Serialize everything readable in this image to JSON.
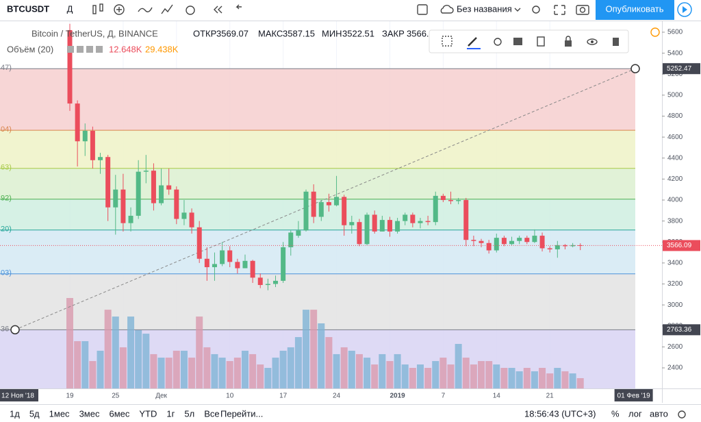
{
  "toolbar": {
    "symbol": "BTCUSDT",
    "interval": "Д",
    "layout_name": "Без названия",
    "publish": "Опубликовать"
  },
  "legend": {
    "title": "Bitcoin / TetherUS, Д, BINANCE",
    "open_label": "ОТКР",
    "high_label": "МАКС",
    "low_label": "МИН",
    "close_label": "ЗАКР",
    "close_shown": "3566.",
    "volume_title": "Объём (20)",
    "volume_value": "12.648K",
    "volume_ma": "29.438K"
  },
  "chart_data": {
    "type": "candlestick",
    "up_color": "#53b987",
    "down_color": "#eb4d5c",
    "candles": {
      "open": [
        5620,
        4920,
        4560,
        4660,
        4380,
        4410,
        3930,
        4100,
        3780,
        3850,
        4270,
        4280,
        3970,
        4140,
        4100,
        3820,
        3880,
        3740,
        3440,
        3360,
        3390,
        3520,
        3410,
        3350,
        3420,
        3260,
        3190,
        3200,
        3230,
        3550,
        3660,
        3710,
        4080,
        3840,
        3980,
        3950,
        4030,
        3760,
        3790,
        3580,
        3860,
        3700,
        3810,
        3700,
        3800,
        3860,
        3780,
        3800,
        3790,
        4040,
        4000,
        3990,
        4000,
        3620,
        3610,
        3590,
        3520,
        3640,
        3580,
        3610,
        3640,
        3600,
        3660,
        3540,
        3530,
        3570,
        3560,
        3569.07
      ],
      "high": [
        5680,
        4950,
        4730,
        4700,
        4450,
        4430,
        4240,
        4250,
        3930,
        4380,
        4430,
        4350,
        4300,
        4300,
        4130,
        4000,
        3920,
        3800,
        3550,
        3500,
        3600,
        3560,
        3440,
        3480,
        3430,
        3300,
        3250,
        3280,
        3600,
        3710,
        3800,
        4100,
        4150,
        4000,
        4060,
        4230,
        4050,
        3850,
        3820,
        3880,
        3900,
        3850,
        3840,
        3830,
        3880,
        3880,
        3830,
        3850,
        4080,
        4060,
        4080,
        4020,
        4020,
        3660,
        3630,
        3620,
        3680,
        3660,
        3650,
        3660,
        3660,
        3720,
        3690,
        3560,
        3610,
        3580,
        3590,
        3587.15
      ],
      "low": [
        4850,
        4320,
        4420,
        4300,
        4250,
        3800,
        3670,
        3700,
        3700,
        3820,
        4160,
        3900,
        3950,
        4050,
        3770,
        3760,
        3680,
        3400,
        3230,
        3230,
        3370,
        3360,
        3300,
        3350,
        3210,
        3160,
        3140,
        3170,
        3210,
        3470,
        3640,
        3700,
        3780,
        3800,
        3890,
        3940,
        3660,
        3680,
        3560,
        3570,
        3680,
        3700,
        3650,
        3680,
        3760,
        3740,
        3730,
        3760,
        3760,
        3980,
        3960,
        3960,
        3560,
        3560,
        3550,
        3490,
        3500,
        3560,
        3570,
        3580,
        3580,
        3590,
        3510,
        3500,
        3450,
        3530,
        3550,
        3522.51
      ],
      "close": [
        4920,
        4560,
        4660,
        4380,
        4410,
        3930,
        4100,
        3780,
        3850,
        4270,
        4280,
        3970,
        4140,
        4100,
        3820,
        3880,
        3740,
        3440,
        3360,
        3390,
        3520,
        3410,
        3350,
        3420,
        3260,
        3190,
        3200,
        3230,
        3550,
        3690,
        3710,
        4080,
        3840,
        3980,
        3950,
        4030,
        3760,
        3790,
        3580,
        3860,
        3700,
        3810,
        3700,
        3800,
        3860,
        3780,
        3800,
        3790,
        4040,
        4000,
        3990,
        4000,
        3620,
        3610,
        3590,
        3520,
        3640,
        3580,
        3610,
        3640,
        3600,
        3660,
        3540,
        3530,
        3570,
        3560,
        3570,
        3566.09
      ]
    },
    "volume": {
      "up_color": "#7fb4d6",
      "down_color": "#d99aae",
      "values": [
        111.3,
        58.2,
        58.2,
        33.7,
        46.4,
        96.9,
        88.5,
        50.6,
        88.5,
        71.7,
        67.4,
        42.2,
        37.9,
        37.9,
        46.4,
        46.4,
        37.9,
        88.5,
        50.6,
        42.2,
        37.9,
        33.7,
        37.9,
        46.4,
        42.2,
        29.5,
        25.3,
        37.9,
        46.4,
        50.6,
        63.2,
        96.9,
        96.9,
        80.1,
        63.2,
        42.2,
        50.6,
        46.4,
        42.2,
        37.9,
        29.5,
        42.2,
        33.7,
        42.2,
        29.5,
        25.3,
        29.5,
        25.3,
        33.7,
        37.9,
        29.5,
        54.8,
        37.9,
        29.5,
        33.7,
        33.7,
        29.5,
        25.3,
        25.3,
        21.1,
        25.3,
        21.1,
        25.3,
        18.5,
        25.3,
        21.1,
        18.5,
        12.648
      ]
    },
    "ylim": [
      2204,
      5711
    ],
    "yticks": [
      2400,
      2600,
      2800,
      3000,
      3200,
      3400,
      3600,
      3800,
      4000,
      4200,
      4400,
      4600,
      4800,
      5000,
      5200,
      5400,
      5600
    ],
    "fib": {
      "levels": [
        {
          "price": 5252.47,
          "label": "47)",
          "color": "#787b86",
          "fill": "#f6cfcf"
        },
        {
          "price": 4665.04,
          "label": "04)",
          "color": "#d8844a",
          "fill": "#eef2c7"
        },
        {
          "price": 4301.63,
          "label": "63)",
          "color": "#a7c947",
          "fill": "#dcf0d0"
        },
        {
          "price": 4007.92,
          "label": "92)",
          "color": "#4caf50",
          "fill": "#cfeee0"
        },
        {
          "price": 3714.2,
          "label": "20)",
          "color": "#26a69a",
          "fill": "#d4e9f3"
        },
        {
          "price": 3296.03,
          "label": "03)",
          "color": "#4a90d9",
          "fill": "#e3e3e3"
        },
        {
          "price": 2763.36,
          "label": "36",
          "color": "#787b86",
          "fill": "#d8d4f3"
        }
      ]
    },
    "time_labels": [
      "12 Ноя '18",
      "19",
      "25",
      "Дек",
      "10",
      "17",
      "24",
      "2019",
      "7",
      "14",
      "21",
      "01 Фев '19"
    ]
  },
  "bottom_bar": {
    "ranges": [
      "1д",
      "5д",
      "1мес",
      "3мес",
      "6мес",
      "YTD",
      "1г",
      "5л",
      "Все"
    ],
    "goto": "Перейти...",
    "time": "18:56:43 (UTC+3)",
    "percent": "%",
    "log": "лог",
    "auto": "авто"
  }
}
